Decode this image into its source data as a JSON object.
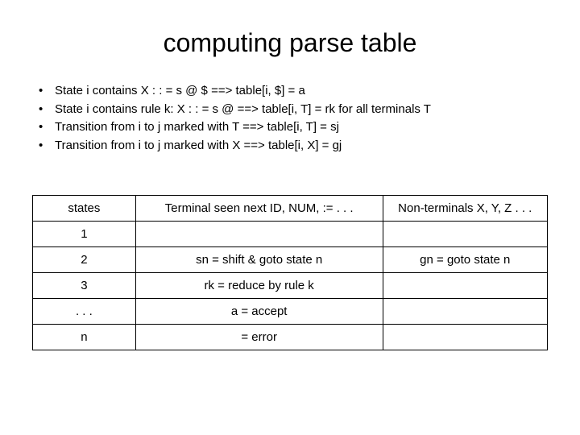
{
  "title": "computing parse table",
  "bullets": [
    "State i contains X : : = s @ $ ==> table[i, $] = a",
    "State i contains rule k: X : : = s @ ==> table[i, T] = rk for all terminals T",
    "Transition from i to j marked with T ==> table[i, T] = sj",
    "Transition from i to j marked with X ==> table[i, X] = gj"
  ],
  "table": {
    "columns": [
      "states",
      "terminal",
      "nonterminal"
    ],
    "rows": [
      [
        "states",
        "Terminal seen next ID, NUM, := . . .",
        "Non-terminals X, Y, Z . . ."
      ],
      [
        "1",
        "",
        ""
      ],
      [
        "2",
        "sn = shift & goto state n",
        "gn = goto state n"
      ],
      [
        "3",
        "rk = reduce by rule k",
        ""
      ],
      [
        ". . .",
        "a = accept",
        ""
      ],
      [
        "n",
        "= error",
        ""
      ]
    ]
  },
  "colors": {
    "background": "#ffffff",
    "text": "#000000",
    "border": "#000000"
  },
  "fonts": {
    "title_size": 32,
    "body_size": 15,
    "family": "Arial"
  }
}
